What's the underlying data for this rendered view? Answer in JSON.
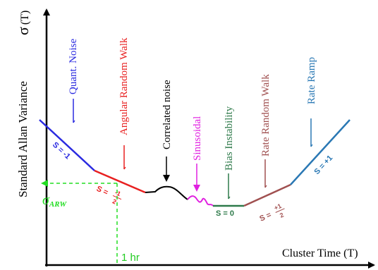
{
  "axes": {
    "y_label": "Standard Allan Variance",
    "y_symbol": "σ",
    "y_symbol_arg": "(T)",
    "x_label": "Cluster Time (T)"
  },
  "colors": {
    "axis": "#000000",
    "quant_noise": "#2a2ae0",
    "angular_random_walk": "#e82020",
    "correlated_noise": "#000000",
    "sinusoidal": "#e020e0",
    "bias_instability": "#2e7a4a",
    "rate_random_walk": "#a05050",
    "rate_ramp": "#2a78b4",
    "arw_marker": "#22dd22"
  },
  "regions": {
    "quant_noise": {
      "title": "Quant. Noise",
      "slope_label": "S = -1"
    },
    "angular_random_walk": {
      "title": "Angular Random Walk",
      "slope_label": "S =",
      "slope_num": "-1",
      "slope_den": "2"
    },
    "correlated_noise": {
      "title": "Correlated noise"
    },
    "sinusoidal": {
      "title": "Sinusoidal"
    },
    "bias_instability": {
      "title": "Bias Instability",
      "slope_label": "S = 0"
    },
    "rate_random_walk": {
      "title": "Rate Random Walk",
      "slope_label": "S =",
      "slope_num": "+1",
      "slope_den": "2"
    },
    "rate_ramp": {
      "title": "Rate Ramp",
      "slope_label": "S = +1"
    }
  },
  "arw_marker": {
    "sigma": "σ",
    "subscript": "ARW",
    "time_label": "1 hr"
  }
}
